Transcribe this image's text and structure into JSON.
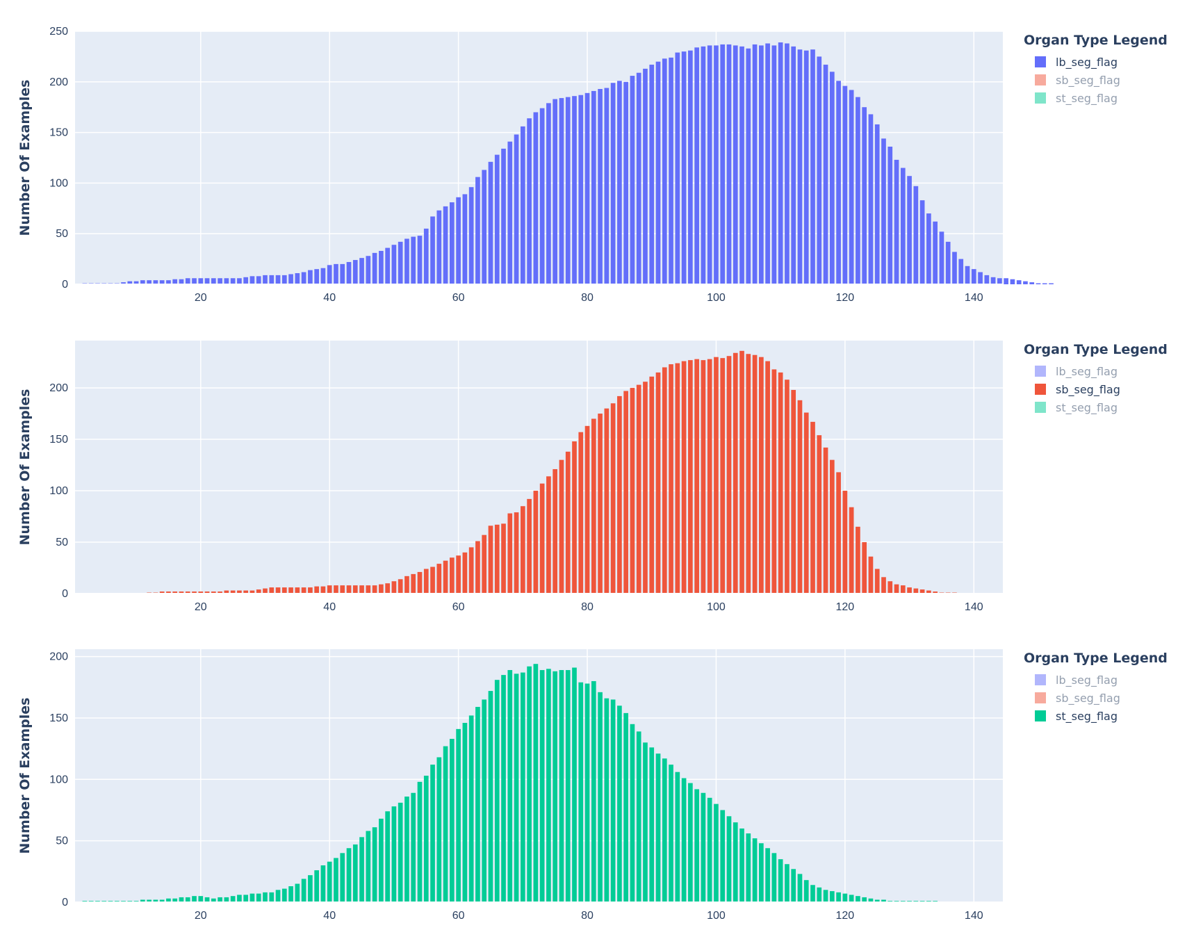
{
  "chart_data": [
    {
      "type": "bar",
      "ylabel": "Number Of Examples",
      "xlabel": "",
      "xlim": [
        0.5,
        144.5
      ],
      "ylim": [
        0,
        250
      ],
      "xticks": [
        20,
        40,
        60,
        80,
        100,
        120,
        140
      ],
      "yticks": [
        0,
        50,
        100,
        150,
        200,
        250
      ],
      "legend": {
        "title": "Organ Type Legend",
        "placement": "top-right",
        "entries": [
          "lb_seg_flag",
          "sb_seg_flag",
          "st_seg_flag"
        ],
        "active": 0
      },
      "grid": true,
      "series": [
        {
          "name": "lb_seg_flag",
          "color": "#636efa",
          "x_start": 2,
          "values": [
            1,
            1,
            1,
            1,
            1,
            1,
            2,
            3,
            3,
            4,
            4,
            4,
            4,
            4,
            5,
            5,
            6,
            6,
            6,
            6,
            6,
            6,
            6,
            6,
            6,
            7,
            8,
            8,
            9,
            9,
            9,
            9,
            10,
            11,
            12,
            14,
            15,
            16,
            19,
            20,
            20,
            22,
            24,
            26,
            28,
            31,
            33,
            36,
            39,
            42,
            45,
            47,
            48,
            55,
            67,
            73,
            77,
            81,
            86,
            89,
            96,
            106,
            113,
            121,
            128,
            134,
            141,
            148,
            156,
            164,
            170,
            174,
            179,
            183,
            184,
            185,
            186,
            187,
            189,
            191,
            193,
            194,
            199,
            201,
            200,
            206,
            209,
            213,
            217,
            220,
            223,
            224,
            229,
            230,
            231,
            234,
            235,
            236,
            236,
            237,
            237,
            236,
            235,
            233,
            237,
            236,
            238,
            236,
            239,
            238,
            235,
            232,
            231,
            232,
            225,
            217,
            210,
            201,
            196,
            192,
            185,
            175,
            168,
            158,
            144,
            136,
            123,
            115,
            107,
            97,
            83,
            70,
            62,
            52,
            42,
            32,
            25,
            18,
            15,
            12,
            9,
            7,
            6,
            6,
            5,
            4,
            3,
            2,
            1,
            1,
            1
          ],
          "x_end_note": ""
        }
      ]
    },
    {
      "type": "bar",
      "ylabel": "Number Of Examples",
      "xlabel": "",
      "xlim": [
        0.5,
        144.5
      ],
      "ylim": [
        0,
        246
      ],
      "xticks": [
        20,
        40,
        60,
        80,
        100,
        120,
        140
      ],
      "yticks": [
        0,
        50,
        100,
        150,
        200
      ],
      "legend": {
        "title": "Organ Type Legend",
        "placement": "top-right",
        "entries": [
          "lb_seg_flag",
          "sb_seg_flag",
          "st_seg_flag"
        ],
        "active": 1
      },
      "grid": true,
      "series": [
        {
          "name": "sb_seg_flag",
          "color": "#ef553b",
          "x_start": 12,
          "values": [
            1,
            1,
            2,
            2,
            2,
            2,
            2,
            2,
            2,
            2,
            2,
            2,
            3,
            3,
            3,
            3,
            3,
            4,
            5,
            6,
            6,
            6,
            6,
            6,
            6,
            6,
            7,
            7,
            8,
            8,
            8,
            8,
            8,
            8,
            8,
            8,
            9,
            10,
            12,
            14,
            17,
            19,
            21,
            24,
            26,
            29,
            32,
            35,
            37,
            40,
            45,
            51,
            57,
            66,
            67,
            68,
            78,
            79,
            85,
            92,
            100,
            107,
            114,
            121,
            130,
            138,
            148,
            157,
            163,
            170,
            175,
            180,
            185,
            192,
            197,
            200,
            203,
            206,
            211,
            215,
            220,
            223,
            224,
            226,
            227,
            228,
            227,
            228,
            230,
            229,
            231,
            234,
            236,
            233,
            232,
            230,
            226,
            218,
            215,
            208,
            198,
            188,
            176,
            167,
            154,
            142,
            130,
            118,
            100,
            84,
            65,
            50,
            36,
            24,
            16,
            12,
            9,
            8,
            6,
            5,
            4,
            3,
            2,
            1,
            1,
            1
          ]
        }
      ]
    },
    {
      "type": "bar",
      "ylabel": "Number Of Examples",
      "xlabel": "",
      "xlim": [
        0.5,
        144.5
      ],
      "ylim": [
        0,
        206
      ],
      "xticks": [
        20,
        40,
        60,
        80,
        100,
        120,
        140
      ],
      "yticks": [
        0,
        50,
        100,
        150,
        200
      ],
      "legend": {
        "title": "Organ Type Legend",
        "placement": "top-right",
        "entries": [
          "lb_seg_flag",
          "sb_seg_flag",
          "st_seg_flag"
        ],
        "active": 2
      },
      "grid": true,
      "series": [
        {
          "name": "st_seg_flag",
          "color": "#00cc96",
          "x_start": 2,
          "values": [
            1,
            1,
            1,
            1,
            1,
            1,
            1,
            1,
            1,
            2,
            2,
            2,
            2,
            3,
            3,
            4,
            4,
            5,
            5,
            4,
            3,
            4,
            4,
            5,
            6,
            6,
            7,
            7,
            8,
            8,
            10,
            11,
            13,
            15,
            19,
            22,
            26,
            30,
            33,
            36,
            40,
            44,
            47,
            53,
            58,
            61,
            68,
            74,
            78,
            81,
            86,
            89,
            98,
            103,
            112,
            118,
            127,
            133,
            141,
            146,
            152,
            159,
            165,
            172,
            181,
            185,
            189,
            186,
            187,
            192,
            194,
            189,
            190,
            188,
            189,
            189,
            191,
            179,
            178,
            180,
            171,
            166,
            165,
            160,
            154,
            145,
            139,
            130,
            126,
            121,
            117,
            112,
            106,
            101,
            97,
            92,
            89,
            85,
            80,
            75,
            70,
            65,
            60,
            56,
            52,
            48,
            44,
            40,
            35,
            31,
            27,
            23,
            18,
            14,
            12,
            10,
            9,
            8,
            7,
            6,
            5,
            4,
            3,
            2,
            2,
            1,
            1,
            1,
            1,
            1,
            1,
            1,
            1
          ]
        }
      ]
    }
  ]
}
